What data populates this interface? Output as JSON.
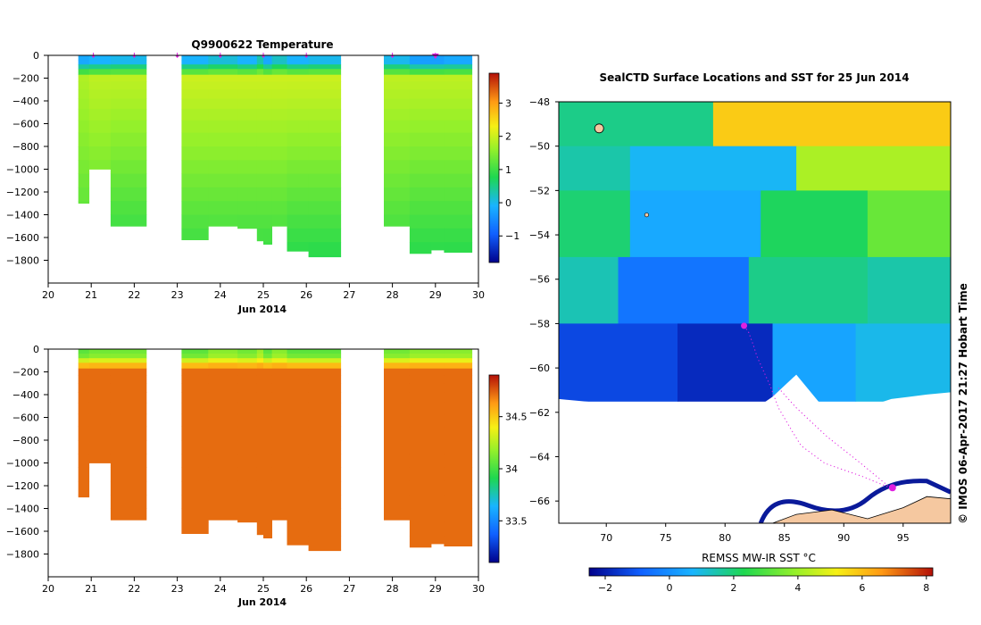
{
  "chart_data": [
    {
      "id": "temperature",
      "type": "heatmap",
      "title": "Q9900622  Temperature",
      "xlabel": "Jun 2014",
      "xlim": [
        20,
        30
      ],
      "ylim": [
        -2000,
        0
      ],
      "xticks": [
        20,
        21,
        22,
        23,
        24,
        25,
        26,
        27,
        28,
        29,
        30
      ],
      "yticks": [
        0,
        -200,
        -400,
        -600,
        -800,
        -1000,
        -1200,
        -1400,
        -1600,
        -1800
      ],
      "colorbar": {
        "min": -1.8,
        "max": 3.9,
        "ticks": [
          -1,
          0,
          1,
          2,
          3
        ]
      },
      "surface_markers": [
        21.05,
        22.0,
        23.0,
        24.0,
        25.0,
        26.0,
        28.0,
        29.0
      ],
      "highlight_marker": 29.0,
      "profiles": [
        {
          "x0": 20.7,
          "x1": 20.95,
          "max_depth": 1300,
          "surface": -0.2,
          "core": 1.8,
          "deep": 1.0
        },
        {
          "x0": 20.95,
          "x1": 21.45,
          "max_depth": 1000,
          "surface": -0.1,
          "core": 1.9,
          "deep": 1.0
        },
        {
          "x0": 21.45,
          "x1": 22.28,
          "max_depth": 1500,
          "surface": 0.0,
          "core": 1.9,
          "deep": 0.8
        },
        {
          "x0": 23.1,
          "x1": 23.72,
          "max_depth": 1620,
          "surface": -0.1,
          "core": 2.0,
          "deep": 0.9
        },
        {
          "x0": 23.72,
          "x1": 24.4,
          "max_depth": 1500,
          "surface": 0.1,
          "core": 2.0,
          "deep": 0.9
        },
        {
          "x0": 24.4,
          "x1": 24.85,
          "max_depth": 1520,
          "surface": -0.1,
          "core": 2.0,
          "deep": 0.9
        },
        {
          "x0": 24.85,
          "x1": 25.0,
          "max_depth": 1630,
          "surface": 0.3,
          "core": 2.0,
          "deep": 0.9
        },
        {
          "x0": 25.0,
          "x1": 25.2,
          "max_depth": 1660,
          "surface": -0.2,
          "core": 2.0,
          "deep": 0.9
        },
        {
          "x0": 25.2,
          "x1": 25.55,
          "max_depth": 1500,
          "surface": 0.2,
          "core": 2.0,
          "deep": 0.9
        },
        {
          "x0": 25.55,
          "x1": 26.05,
          "max_depth": 1720,
          "surface": -0.1,
          "core": 2.0,
          "deep": 0.8
        },
        {
          "x0": 26.05,
          "x1": 26.8,
          "max_depth": 1770,
          "surface": 0.0,
          "core": 2.0,
          "deep": 0.8
        },
        {
          "x0": 27.8,
          "x1": 28.4,
          "max_depth": 1500,
          "surface": 0.0,
          "core": 1.9,
          "deep": 0.9
        },
        {
          "x0": 28.4,
          "x1": 28.9,
          "max_depth": 1740,
          "surface": -0.3,
          "core": 1.9,
          "deep": 0.8
        },
        {
          "x0": 28.9,
          "x1": 29.2,
          "max_depth": 1710,
          "surface": -0.3,
          "core": 1.9,
          "deep": 0.8
        },
        {
          "x0": 29.2,
          "x1": 29.85,
          "max_depth": 1730,
          "surface": -0.2,
          "core": 1.9,
          "deep": 0.8
        }
      ]
    },
    {
      "id": "salinity",
      "type": "heatmap",
      "title": "",
      "xlabel": "Jun 2014",
      "xlim": [
        20,
        30
      ],
      "ylim": [
        -2000,
        0
      ],
      "xticks": [
        20,
        21,
        22,
        23,
        24,
        25,
        26,
        27,
        28,
        29,
        30
      ],
      "yticks": [
        0,
        -200,
        -400,
        -600,
        -800,
        -1000,
        -1200,
        -1400,
        -1600,
        -1800
      ],
      "colorbar": {
        "min": 33.1,
        "max": 34.9,
        "ticks": [
          33.5,
          34,
          34.5
        ]
      },
      "profiles": [
        {
          "x0": 20.7,
          "x1": 20.95,
          "max_depth": 1300,
          "surface": 34.05,
          "core": 34.72,
          "deep": 34.72
        },
        {
          "x0": 20.95,
          "x1": 21.45,
          "max_depth": 1000,
          "surface": 34.1,
          "core": 34.72,
          "deep": 34.72
        },
        {
          "x0": 21.45,
          "x1": 22.28,
          "max_depth": 1500,
          "surface": 34.1,
          "core": 34.72,
          "deep": 34.72
        },
        {
          "x0": 23.1,
          "x1": 23.72,
          "max_depth": 1620,
          "surface": 34.05,
          "core": 34.72,
          "deep": 34.72
        },
        {
          "x0": 23.72,
          "x1": 24.4,
          "max_depth": 1500,
          "surface": 34.15,
          "core": 34.72,
          "deep": 34.72
        },
        {
          "x0": 24.4,
          "x1": 24.85,
          "max_depth": 1520,
          "surface": 34.1,
          "core": 34.72,
          "deep": 34.72
        },
        {
          "x0": 24.85,
          "x1": 25.0,
          "max_depth": 1630,
          "surface": 34.2,
          "core": 34.72,
          "deep": 34.72
        },
        {
          "x0": 25.0,
          "x1": 25.2,
          "max_depth": 1660,
          "surface": 34.05,
          "core": 34.72,
          "deep": 34.72
        },
        {
          "x0": 25.2,
          "x1": 25.55,
          "max_depth": 1500,
          "surface": 34.15,
          "core": 34.72,
          "deep": 34.72
        },
        {
          "x0": 25.55,
          "x1": 26.05,
          "max_depth": 1720,
          "surface": 34.05,
          "core": 34.72,
          "deep": 34.72
        },
        {
          "x0": 26.05,
          "x1": 26.8,
          "max_depth": 1770,
          "surface": 34.05,
          "core": 34.72,
          "deep": 34.72
        },
        {
          "x0": 27.8,
          "x1": 28.4,
          "max_depth": 1500,
          "surface": 34.1,
          "core": 34.72,
          "deep": 34.72
        },
        {
          "x0": 28.4,
          "x1": 28.9,
          "max_depth": 1740,
          "surface": 34.15,
          "core": 34.72,
          "deep": 34.72
        },
        {
          "x0": 28.9,
          "x1": 29.2,
          "max_depth": 1710,
          "surface": 34.15,
          "core": 34.72,
          "deep": 34.72
        },
        {
          "x0": 29.2,
          "x1": 29.85,
          "max_depth": 1730,
          "surface": 34.15,
          "core": 34.72,
          "deep": 34.72
        }
      ]
    },
    {
      "id": "sst_map",
      "type": "heatmap",
      "title": "SealCTD Surface Locations and SST for 25 Jun 2014",
      "xlim": [
        66,
        99
      ],
      "ylim": [
        -67,
        -48
      ],
      "xticks": [
        70,
        75,
        80,
        85,
        90,
        95
      ],
      "yticks": [
        -48,
        -50,
        -52,
        -54,
        -56,
        -58,
        -60,
        -62,
        -64,
        -66
      ],
      "colorbar": {
        "label": "REMSS MW-IR SST °C",
        "min": -2.5,
        "max": 8.2,
        "ticks": [
          -2,
          0,
          2,
          4,
          6,
          8
        ]
      },
      "sst_zones": [
        {
          "lat_top": -48,
          "lat_bot": -50,
          "lon0": 66,
          "lon1": 79,
          "sst": 1.8
        },
        {
          "lat_top": -48,
          "lat_bot": -50,
          "lon0": 79,
          "lon1": 99,
          "sst": 5.8
        },
        {
          "lat_top": -50,
          "lat_bot": -52,
          "lon0": 66,
          "lon1": 72,
          "sst": 1.5
        },
        {
          "lat_top": -50,
          "lat_bot": -52,
          "lon0": 72,
          "lon1": 86,
          "sst": 0.8
        },
        {
          "lat_top": -50,
          "lat_bot": -52,
          "lon0": 86,
          "lon1": 99,
          "sst": 4.2
        },
        {
          "lat_top": -52,
          "lat_bot": -55,
          "lon0": 66,
          "lon1": 72,
          "sst": 2.0
        },
        {
          "lat_top": -52,
          "lat_bot": -55,
          "lon0": 72,
          "lon1": 83,
          "sst": 0.5
        },
        {
          "lat_top": -52,
          "lat_bot": -55,
          "lon0": 83,
          "lon1": 92,
          "sst": 2.2
        },
        {
          "lat_top": -52,
          "lat_bot": -55,
          "lon0": 92,
          "lon1": 99,
          "sst": 3.3
        },
        {
          "lat_top": -55,
          "lat_bot": -58,
          "lon0": 66,
          "lon1": 71,
          "sst": 1.4
        },
        {
          "lat_top": -55,
          "lat_bot": -58,
          "lon0": 71,
          "lon1": 82,
          "sst": -0.5
        },
        {
          "lat_top": -55,
          "lat_bot": -58,
          "lon0": 82,
          "lon1": 92,
          "sst": 1.8
        },
        {
          "lat_top": -55,
          "lat_bot": -58,
          "lon0": 92,
          "lon1": 99,
          "sst": 1.5
        },
        {
          "lat_top": -58,
          "lat_bot": -61.5,
          "lon0": 66,
          "lon1": 76,
          "sst": -1.3
        },
        {
          "lat_top": -58,
          "lat_bot": -61.5,
          "lon0": 76,
          "lon1": 84,
          "sst": -1.8
        },
        {
          "lat_top": -58,
          "lat_bot": -61.5,
          "lon0": 84,
          "lon1": 91,
          "sst": 0.4
        },
        {
          "lat_top": -58,
          "lat_bot": -61.5,
          "lon0": 91,
          "lon1": 99,
          "sst": 0.9
        }
      ],
      "ice_edge": [
        [
          66,
          -61.4
        ],
        [
          72,
          -61.7
        ],
        [
          78,
          -61.6
        ],
        [
          81,
          -62.4
        ],
        [
          84,
          -61.3
        ],
        [
          86,
          -60.3
        ],
        [
          88,
          -61.6
        ],
        [
          90,
          -62.1
        ],
        [
          94,
          -61.4
        ],
        [
          97,
          -61.2
        ],
        [
          99,
          -61.1
        ]
      ],
      "land": [
        [
          84,
          -67
        ],
        [
          86,
          -66.6
        ],
        [
          89,
          -66.4
        ],
        [
          92,
          -66.8
        ],
        [
          95,
          -66.3
        ],
        [
          97,
          -65.8
        ],
        [
          99,
          -65.9
        ],
        [
          99,
          -67
        ]
      ],
      "seal_track": [
        [
          81.6,
          -58.1
        ],
        [
          82.0,
          -58.4
        ],
        [
          82.4,
          -59.0
        ],
        [
          82.7,
          -59.5
        ],
        [
          83.8,
          -60.8
        ],
        [
          84.5,
          -61.8
        ],
        [
          85.6,
          -62.8
        ],
        [
          86.4,
          -63.5
        ],
        [
          88.4,
          -64.3
        ],
        [
          91.6,
          -64.9
        ],
        [
          93.9,
          -65.4
        ],
        [
          94.1,
          -65.5
        ]
      ],
      "seal_track_2": [
        [
          84.5,
          -60.9
        ],
        [
          86.0,
          -61.8
        ],
        [
          88.6,
          -63.1
        ],
        [
          91.2,
          -64.2
        ],
        [
          93.7,
          -65.3
        ]
      ],
      "highlight_location": [
        81.6,
        -58.1
      ],
      "side_label": "© IMOS 06-Apr-2017 21:27 Hobart Time"
    }
  ]
}
